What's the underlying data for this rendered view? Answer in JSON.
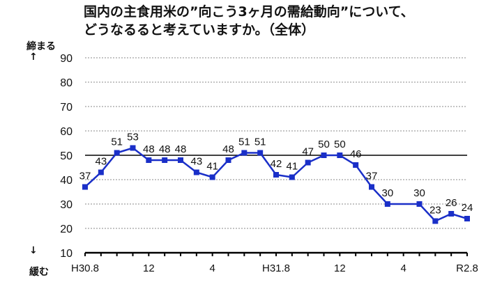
{
  "chart_data": {
    "type": "line",
    "title_lines": [
      "国内の主食用米の”向こう3ヶ月の需給動向”について、",
      "どうなるると考えていますか。（全体）"
    ],
    "ylabel_top": "締まる",
    "ylabel_bottom": "緩む",
    "arrow_up": "↑",
    "arrow_down": "↓",
    "ylim": [
      10,
      90
    ],
    "yticks": [
      10,
      20,
      30,
      40,
      50,
      60,
      70,
      80,
      90
    ],
    "reference_line": 50,
    "grid": "dotted horizontal",
    "x_tick_labels": [
      {
        "index": 0,
        "label": "H30.8"
      },
      {
        "index": 4,
        "label": "12"
      },
      {
        "index": 8,
        "label": "4"
      },
      {
        "index": 12,
        "label": "H31.8"
      },
      {
        "index": 16,
        "label": "12"
      },
      {
        "index": 20,
        "label": "4"
      },
      {
        "index": 24,
        "label": "R2.8"
      }
    ],
    "values": [
      37,
      43,
      51,
      53,
      48,
      48,
      48,
      43,
      41,
      48,
      51,
      51,
      42,
      41,
      47,
      50,
      50,
      46,
      37,
      30,
      null,
      30,
      23,
      26,
      24
    ],
    "color": "#1a2fc8"
  }
}
